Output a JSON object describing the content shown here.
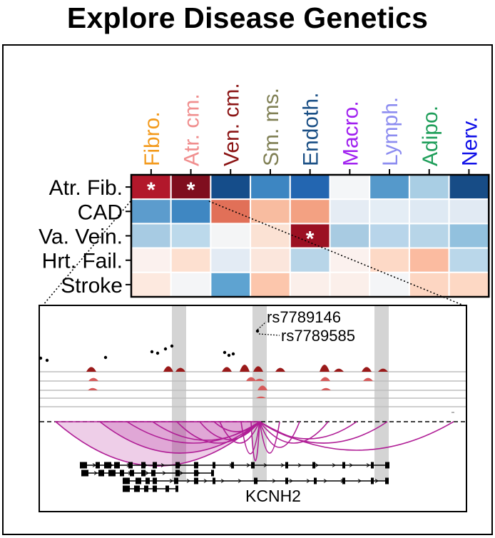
{
  "title": "Explore Disease Genetics",
  "heatmap": {
    "columns": [
      {
        "label": "Fibro.",
        "color": "#f39a1c"
      },
      {
        "label": "Atr. cm.",
        "color": "#f08e8e"
      },
      {
        "label": "Ven. cm.",
        "color": "#8b1414"
      },
      {
        "label": "Sm. ms.",
        "color": "#808055"
      },
      {
        "label": "Endoth.",
        "color": "#1a4f85"
      },
      {
        "label": "Macro.",
        "color": "#a020f0"
      },
      {
        "label": "Lymph.",
        "color": "#8c8cf0"
      },
      {
        "label": "Adipo.",
        "color": "#1f9e5a"
      },
      {
        "label": "Nerv.",
        "color": "#1010e8"
      }
    ],
    "rows": [
      "Atr. Fib.",
      "CAD",
      "Va. Vein.",
      "Hrt. Fail.",
      "Stroke"
    ],
    "colors": [
      [
        "#b2182b",
        "#7f0e1e",
        "#154d8a",
        "#3d86c2",
        "#2366b1",
        "#f4f6f8",
        "#5599cb",
        "#a9cee4",
        "#174c86"
      ],
      [
        "#5c9ccd",
        "#3f87c2",
        "#e17058",
        "#f8bca0",
        "#f3a182",
        "#e5ecf4",
        "#e4edf5",
        "#dee9f3",
        "#e1eaf3"
      ],
      [
        "#a7cbe3",
        "#bcd9eb",
        "#f4f5f6",
        "#fbe2d4",
        "#9b1022",
        "#a8cbe2",
        "#b8d5ea",
        "#b7d5e8",
        "#92c1de"
      ],
      [
        "#fbf1ee",
        "#fde0d0",
        "#e3ebf4",
        "#fbe6dc",
        "#b8d5e8",
        "#fbf1ee",
        "#fdd9c6",
        "#fbbba0",
        "#bad7ea"
      ],
      [
        "#fde9df",
        "#f4f5f7",
        "#5ea3d1",
        "#fcc6ac",
        "#fbefea",
        "#fbefea",
        "#f4f5f7",
        "#fdd6c2",
        "#fdd8c4"
      ]
    ],
    "stars": [
      {
        "row": 0,
        "col": 0,
        "symbol": "*"
      },
      {
        "row": 0,
        "col": 1,
        "symbol": "*"
      },
      {
        "row": 2,
        "col": 4,
        "symbol": "*"
      }
    ]
  },
  "locus": {
    "snps": [
      "rs7789146",
      "rs7789585"
    ],
    "gene": "KCNH2",
    "arc_color": "#b01e96",
    "peak_color": "#9a1a1a"
  }
}
